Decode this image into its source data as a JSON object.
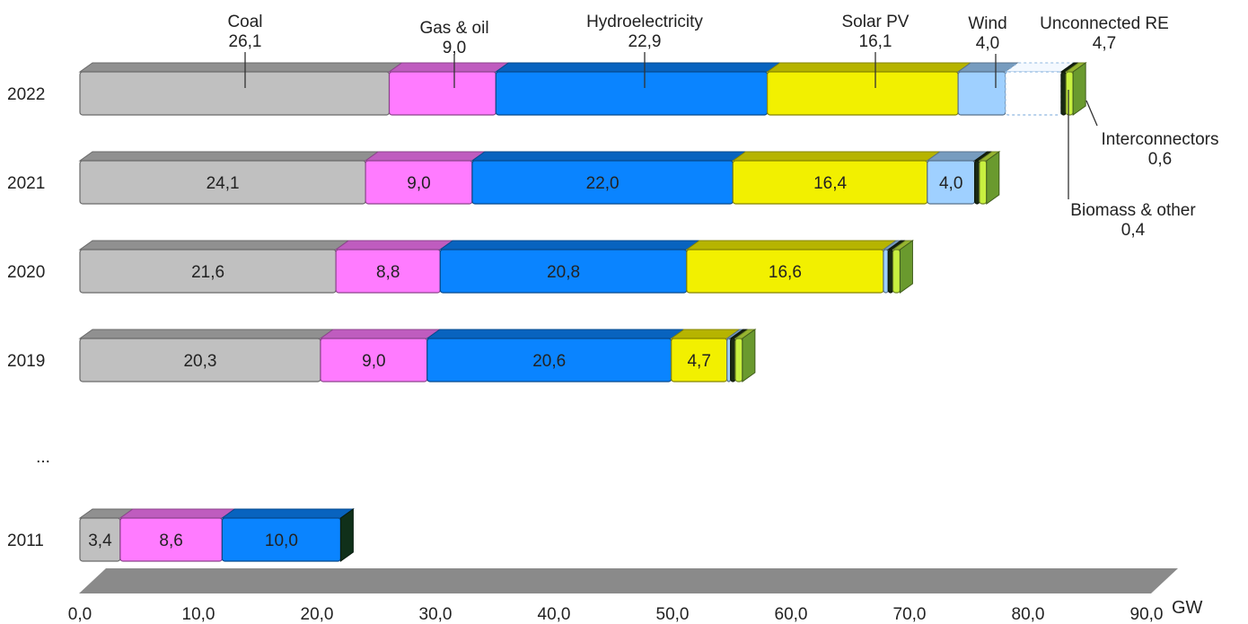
{
  "chart_data": {
    "type": "bar",
    "orientation": "horizontal",
    "stacked": true,
    "style": "3d",
    "x_unit": "GW",
    "xlim": [
      0,
      90
    ],
    "x_ticks": [
      "0,0",
      "10,0",
      "20,0",
      "30,0",
      "40,0",
      "50,0",
      "60,0",
      "70,0",
      "80,0",
      "90,0"
    ],
    "ellipsis": "...",
    "grid": false,
    "categories": [
      "2022",
      "2021",
      "2020",
      "2019",
      "2011"
    ],
    "series": [
      {
        "name": "Coal",
        "color": "#c0c0c0",
        "values": [
          26.1,
          24.1,
          21.6,
          20.3,
          3.4
        ],
        "labels": [
          "26,1",
          "24,1",
          "21,6",
          "20,3",
          "3,4"
        ]
      },
      {
        "name": "Gas & oil",
        "color": "#ff7bff",
        "values": [
          9.0,
          9.0,
          8.8,
          9.0,
          8.6
        ],
        "labels": [
          "9,0",
          "9,0",
          "8,8",
          "9,0",
          "8,6"
        ]
      },
      {
        "name": "Hydroelectricity",
        "color": "#0a84ff",
        "values": [
          22.9,
          22.0,
          20.8,
          20.6,
          10.0
        ],
        "labels": [
          "22,9",
          "22,0",
          "20,8",
          "20,6",
          "10,0"
        ]
      },
      {
        "name": "Solar PV",
        "color": "#f2f000",
        "values": [
          16.1,
          16.4,
          16.6,
          4.7,
          0
        ],
        "labels": [
          "16,1",
          "16,4",
          "16,6",
          "4,7",
          ""
        ]
      },
      {
        "name": "Wind",
        "color": "#9fd0ff",
        "values": [
          4.0,
          4.0,
          0.4,
          0.3,
          0
        ],
        "labels": [
          "4,0",
          "4,0",
          "",
          "",
          ""
        ]
      },
      {
        "name": "Unconnected RE",
        "color": "#ffffff",
        "values": [
          4.7,
          0,
          0,
          0,
          0
        ],
        "labels": [
          "4,7",
          "",
          "",
          "",
          ""
        ]
      },
      {
        "name": "Biomass & other",
        "color": "#1a2a14",
        "values": [
          0.4,
          0.4,
          0.4,
          0.4,
          0
        ],
        "labels": [
          "0,4",
          "",
          "",
          "",
          ""
        ]
      },
      {
        "name": "Interconnectors",
        "color": "#c8f040",
        "values": [
          0.6,
          0.6,
          0.6,
          0.6,
          0
        ],
        "labels": [
          "0,6",
          "",
          "",
          "",
          ""
        ]
      }
    ],
    "annotations": [
      {
        "name": "Coal",
        "value": "26,1"
      },
      {
        "name": "Gas & oil",
        "value": "9,0"
      },
      {
        "name": "Hydroelectricity",
        "value": "22,9"
      },
      {
        "name": "Solar PV",
        "value": "16,1"
      },
      {
        "name": "Wind",
        "value": "4,0"
      },
      {
        "name": "Unconnected RE",
        "value": "4,7"
      },
      {
        "name": "Interconnectors",
        "value": "0,6"
      },
      {
        "name": "Biomass & other",
        "value": "0,4"
      }
    ],
    "colors": {
      "end_cap": "#6a9a2e",
      "end_cap_2011": "#10301a",
      "floor": "#8a8a8a"
    }
  }
}
